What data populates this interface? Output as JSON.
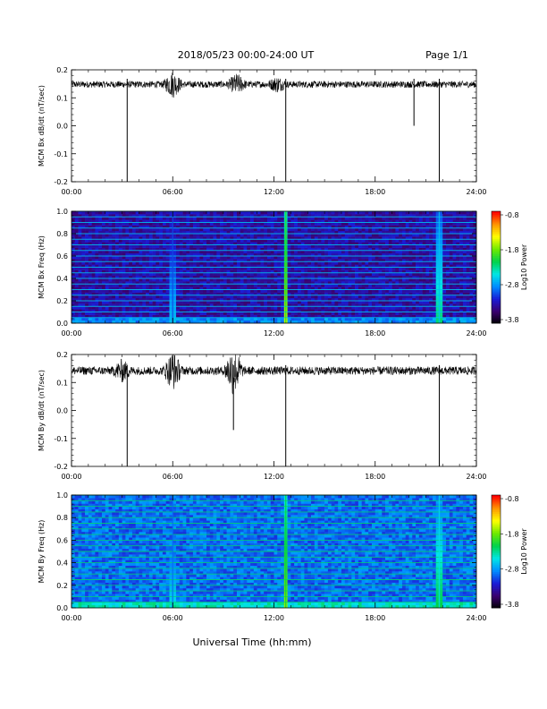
{
  "header": {
    "title": "2018/05/23  00:00-24:00 UT",
    "page": "Page 1/1"
  },
  "footer": {
    "xlabel": "Universal Time (hh:mm)"
  },
  "colorbar": {
    "label": "Log10 Power",
    "ticks": [
      "-0.8",
      "-1.8",
      "-2.8",
      "-3.8"
    ],
    "range": [
      -3.8,
      -0.8
    ],
    "colormap": [
      "#000000",
      "#3a006e",
      "#1b1bd6",
      "#008cff",
      "#00e6e6",
      "#00d24b",
      "#6eea00",
      "#ffff00",
      "#ff9600",
      "#ff0000"
    ]
  },
  "time_ticks": [
    "00:00",
    "06:00",
    "12:00",
    "18:00",
    "24:00"
  ],
  "chart_data": [
    {
      "type": "line",
      "title": "",
      "xlabel": "",
      "ylabel": "MCM Bx dB/dt (nT/sec)",
      "xlim": [
        0,
        24
      ],
      "ylim": [
        -0.2,
        0.2
      ],
      "yticks": [
        "0.2",
        "0.1",
        "0.0",
        "-0.1",
        "-0.2"
      ],
      "grid": false,
      "series": [
        {
          "baseline": 0.148,
          "noise_amplitude": 0.012,
          "bursts": [
            [
              6.0,
              0.04
            ],
            [
              9.8,
              0.03
            ],
            [
              12.2,
              0.02
            ]
          ],
          "spikes": [
            [
              3.3,
              -0.2
            ],
            [
              12.7,
              -0.2
            ],
            [
              20.3,
              0.0
            ],
            [
              21.8,
              -0.2
            ]
          ]
        }
      ]
    },
    {
      "type": "heatmap",
      "title": "",
      "xlabel": "",
      "ylabel": "MCM Bx Freq (Hz)",
      "xlim": [
        0,
        24
      ],
      "ylim": [
        0.0,
        1.0
      ],
      "yticks": [
        "1.0",
        "0.8",
        "0.6",
        "0.4",
        "0.2",
        "0.0"
      ],
      "zlim": [
        -3.8,
        -0.8
      ],
      "background_log_power": -3.3,
      "harmonic_lines_hz": [
        0.05,
        0.1,
        0.15,
        0.2,
        0.25,
        0.3,
        0.35,
        0.4,
        0.45,
        0.5,
        0.55,
        0.6,
        0.65,
        0.7,
        0.75,
        0.8,
        0.85,
        0.9,
        0.95,
        1.0
      ],
      "bright_columns": [
        [
          12.7,
          -1.6
        ],
        [
          21.8,
          -2.2
        ],
        [
          6.0,
          -2.6
        ]
      ]
    },
    {
      "type": "line",
      "title": "",
      "xlabel": "",
      "ylabel": "MCM By dB/dt (nT/sec)",
      "xlim": [
        0,
        24
      ],
      "ylim": [
        -0.2,
        0.2
      ],
      "yticks": [
        "0.2",
        "0.1",
        "0.0",
        "-0.1",
        "-0.2"
      ],
      "grid": false,
      "series": [
        {
          "baseline": 0.142,
          "noise_amplitude": 0.015,
          "bursts": [
            [
              6.0,
              0.06
            ],
            [
              9.6,
              0.08
            ],
            [
              3.0,
              0.03
            ]
          ],
          "spikes": [
            [
              3.3,
              -0.2
            ],
            [
              12.7,
              -0.2
            ],
            [
              21.8,
              -0.2
            ],
            [
              9.6,
              -0.07
            ]
          ]
        }
      ]
    },
    {
      "type": "heatmap",
      "title": "",
      "xlabel": "Universal Time (hh:mm)",
      "ylabel": "MCM By Freq (Hz)",
      "xlim": [
        0,
        24
      ],
      "ylim": [
        0.0,
        1.0
      ],
      "yticks": [
        "1.0",
        "0.8",
        "0.6",
        "0.4",
        "0.2",
        "0.0"
      ],
      "zlim": [
        -3.8,
        -0.8
      ],
      "background_log_power": -2.9,
      "harmonic_lines_hz": [
        0.05,
        0.1,
        0.15,
        0.2,
        0.25,
        0.3,
        0.35,
        0.4,
        0.45,
        0.5,
        0.55,
        0.6,
        0.65,
        0.7,
        0.75,
        0.8,
        0.85,
        0.9,
        0.95,
        1.0
      ],
      "bright_columns": [
        [
          12.7,
          -1.7
        ],
        [
          21.8,
          -2.1
        ],
        [
          6.0,
          -2.5
        ]
      ]
    }
  ]
}
